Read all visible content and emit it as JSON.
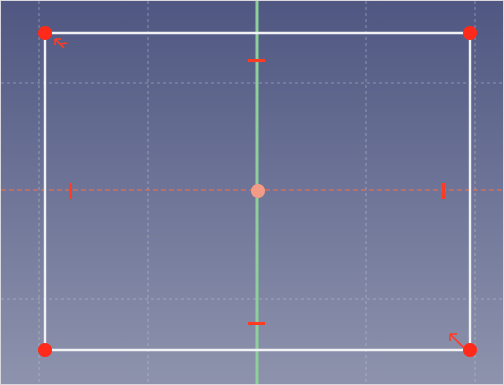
{
  "viewport": {
    "background_top": "#4f5782",
    "background_bottom": "#8e93ad",
    "grid_color": "#c7cadb",
    "horizontal_axis_color": "#f06a4a",
    "vertical_axis_color": "#8ecf9a",
    "rectangle_edge_color": "#f2f2f5",
    "vertex_color": "#ff2a1a",
    "constraint_color": "#ff3b24",
    "origin_point_color": "#f39b86"
  },
  "sketch": {
    "shape": "rectangle",
    "vertices": [
      "top-left",
      "top-right",
      "bottom-right",
      "bottom-left"
    ],
    "constraints": [
      "horizontal",
      "vertical",
      "horizontal",
      "vertical"
    ],
    "symmetry_markers": [
      "top-left",
      "bottom-right"
    ]
  }
}
